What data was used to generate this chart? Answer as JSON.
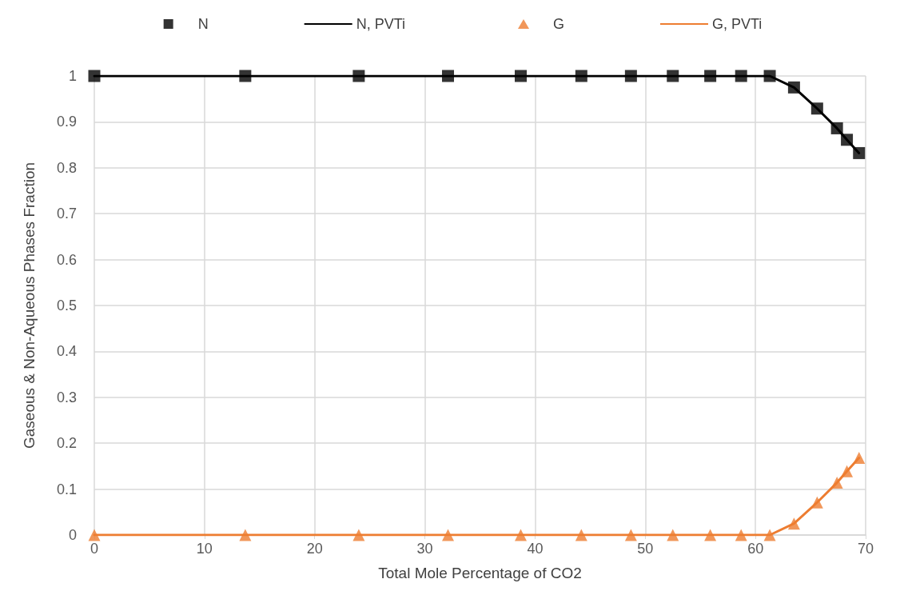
{
  "chart_data": {
    "type": "line",
    "xlabel": "Total Mole Percentage of CO2",
    "ylabel": "Gaseous & Non-Aqueous Phases Fraction",
    "x": [
      0,
      13.7,
      24.0,
      32.1,
      38.7,
      44.2,
      48.7,
      52.5,
      55.9,
      58.7,
      61.3,
      63.5,
      65.6,
      67.4,
      68.3,
      69.4
    ],
    "series": [
      {
        "name": "N",
        "type": "scatter",
        "marker": "square",
        "color": "#000000",
        "values": [
          1,
          1,
          1,
          1,
          1,
          1,
          1,
          1,
          1,
          1,
          1,
          0.975,
          0.929,
          0.886,
          0.861,
          0.832
        ]
      },
      {
        "name": "N, PVTi",
        "marker": "none",
        "color": "#000000",
        "values": [
          1,
          1,
          1,
          1,
          1,
          1,
          1,
          1,
          1,
          1,
          1,
          0.975,
          0.929,
          0.886,
          0.861,
          0.832
        ]
      },
      {
        "name": "G",
        "type": "scatter",
        "marker": "triangle",
        "color": "#ed7d31",
        "values": [
          0,
          0,
          0,
          0,
          0,
          0,
          0,
          0,
          0,
          0,
          0,
          0.025,
          0.071,
          0.114,
          0.139,
          0.168
        ]
      },
      {
        "name": "G, PVTi",
        "marker": "none",
        "color": "#ed7d31",
        "values": [
          0,
          0,
          0,
          0,
          0,
          0,
          0,
          0,
          0,
          0,
          0,
          0.025,
          0.071,
          0.114,
          0.139,
          0.168
        ]
      }
    ],
    "xlim": [
      0,
      70
    ],
    "xticks": [
      0,
      10,
      20,
      30,
      40,
      50,
      60,
      70
    ],
    "ylim": [
      0,
      1
    ],
    "yticks": [
      0,
      0.1,
      0.2,
      0.3,
      0.4,
      0.5,
      0.6,
      0.7,
      0.8,
      0.9,
      1
    ],
    "grid": true,
    "legend": "top"
  }
}
